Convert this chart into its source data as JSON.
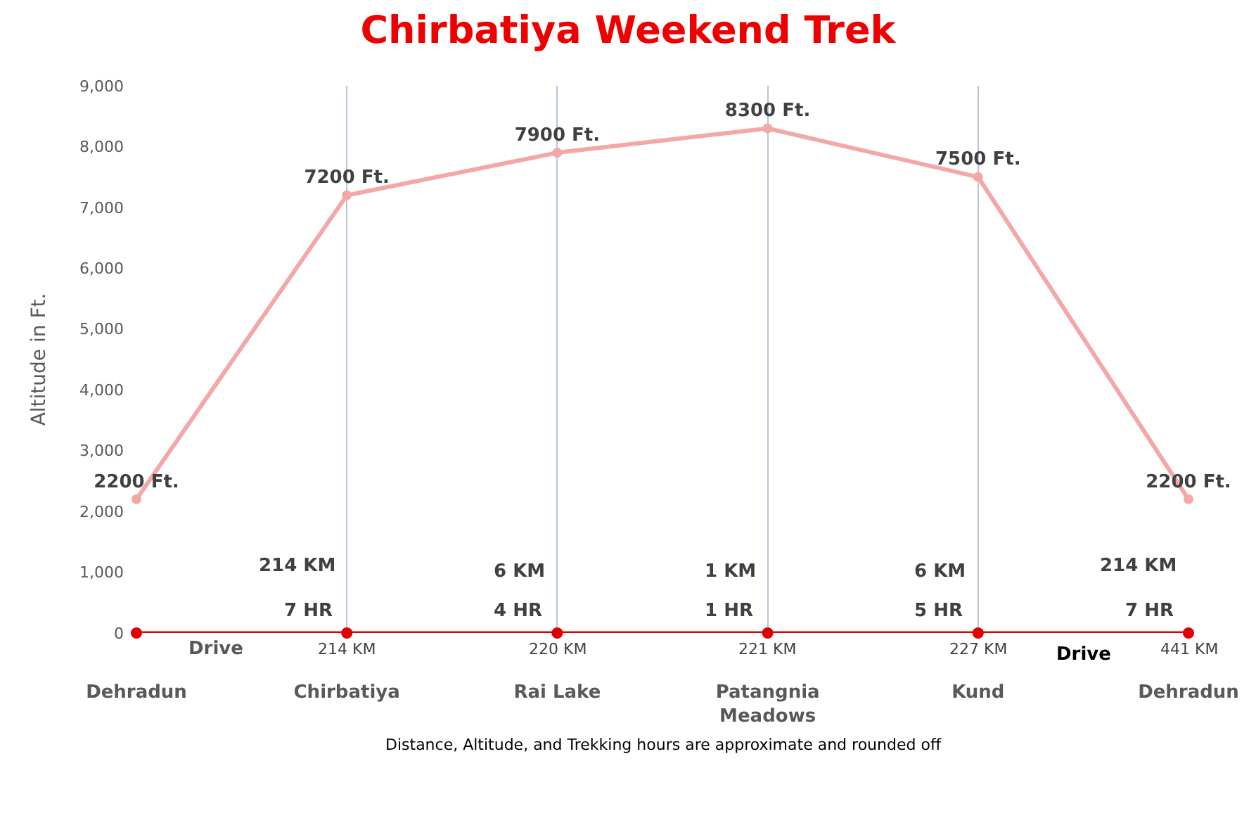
{
  "chart_data": {
    "type": "line",
    "title": "Chirbatiya Weekend Trek",
    "ylabel": "Altitude in Ft.",
    "categories": [
      "Dehradun",
      "Chirbatiya",
      "Rai Lake",
      "Patangnia Meadows",
      "Kund",
      "Dehradun"
    ],
    "series": [
      {
        "color": "#f4a7a7",
        "values": [
          2200,
          7200,
          7900,
          8300,
          7500,
          2200
        ],
        "value_labels": [
          "2200 Ft.",
          "7200 Ft.",
          "7900 Ft.",
          "8300 Ft.",
          "7500 Ft.",
          "2200 Ft."
        ]
      },
      {
        "color": "#e00000",
        "values": [
          0,
          0,
          0,
          0,
          0,
          0
        ]
      }
    ],
    "ylim": [
      0,
      9000
    ],
    "yticks": [
      {
        "value": 0,
        "label": "0"
      },
      {
        "value": 1000,
        "label": "1,000"
      },
      {
        "value": 2000,
        "label": "2,000"
      },
      {
        "value": 3000,
        "label": "3,000"
      },
      {
        "value": 4000,
        "label": "4,000"
      },
      {
        "value": 5000,
        "label": "5,000"
      },
      {
        "value": 6000,
        "label": "6,000"
      },
      {
        "value": 7000,
        "label": "7,000"
      },
      {
        "value": 8000,
        "label": "8,000"
      },
      {
        "value": 9000,
        "label": "9,000"
      }
    ],
    "grid": "x",
    "marker": "circle",
    "line_style": "solid",
    "annotations": [
      "214 KM",
      "6 KM",
      "1 KM",
      "6 KM",
      "214 KM",
      "7 HR",
      "4 HR",
      "1 HR",
      "5 HR",
      "7 HR",
      "214 KM",
      "220 KM",
      "221 KM",
      "227 KM",
      "441 KM",
      "Drive",
      "Drive",
      "Distance, Altitude, and Trekking hours are approximate and rounded off"
    ]
  }
}
